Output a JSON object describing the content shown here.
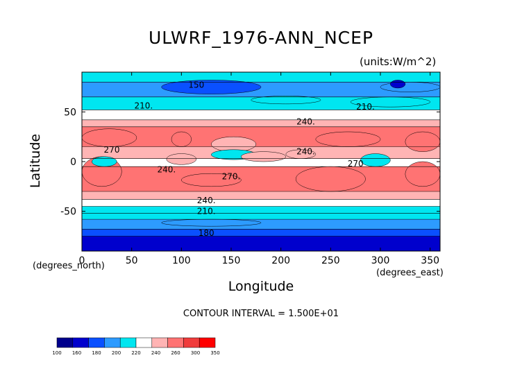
{
  "chart_data": {
    "type": "heatmap",
    "title": "ULWRF_1976-ANN_NCEP",
    "units": "(units:W/m^2)",
    "xlabel": "Longitude",
    "ylabel": "Latitude",
    "x_units_label": "(degrees_east)",
    "y_units_label": "(degrees_north)",
    "xlim": [
      0,
      360
    ],
    "ylim": [
      -90,
      90
    ],
    "x_ticks": [
      0,
      50,
      100,
      150,
      200,
      250,
      300,
      350
    ],
    "y_ticks": [
      -50,
      0,
      50
    ],
    "contour_interval_text": "CONTOUR INTERVAL = 1.500E+01",
    "colorbar": {
      "levels": [
        "100",
        "160",
        "180",
        "200",
        "220",
        "240",
        "260",
        "300",
        "350"
      ],
      "colors": [
        "#00008c",
        "#0000cd",
        "#0a50ff",
        "#2d9bff",
        "#00e6f0",
        "#ffffff",
        "#ffb4b4",
        "#ff7373",
        "#f03c3c",
        "#ff0000"
      ]
    },
    "contour_labels": [
      {
        "text": "150",
        "lon": 115,
        "lat": 77
      },
      {
        "text": "210.",
        "lon": 62,
        "lat": 56
      },
      {
        "text": "210.",
        "lon": 285,
        "lat": 55
      },
      {
        "text": "240.",
        "lon": 225,
        "lat": 40
      },
      {
        "text": "270",
        "lon": 30,
        "lat": 12
      },
      {
        "text": "240.",
        "lon": 225,
        "lat": 10
      },
      {
        "text": "240.",
        "lon": 85,
        "lat": -8
      },
      {
        "text": "270",
        "lon": 275,
        "lat": -2
      },
      {
        "text": "270.",
        "lon": 150,
        "lat": -15
      },
      {
        "text": "240.",
        "lon": 125,
        "lat": -39
      },
      {
        "text": "210.",
        "lon": 125,
        "lat": -50
      },
      {
        "text": "180",
        "lon": 125,
        "lat": -72
      }
    ],
    "bands": [
      {
        "lat_min": 80,
        "lat_max": 90,
        "value": 205
      },
      {
        "lat_min": 65,
        "lat_max": 80,
        "value": 185
      },
      {
        "lat_min": 52,
        "lat_max": 65,
        "value": 210
      },
      {
        "lat_min": 42,
        "lat_max": 52,
        "value": 230
      },
      {
        "lat_min": 35,
        "lat_max": 42,
        "value": 245
      },
      {
        "lat_min": 15,
        "lat_max": 35,
        "value": 265
      },
      {
        "lat_min": 3,
        "lat_max": 15,
        "value": 245
      },
      {
        "lat_min": -5,
        "lat_max": 3,
        "value": 235
      },
      {
        "lat_min": -30,
        "lat_max": -5,
        "value": 265
      },
      {
        "lat_min": -38,
        "lat_max": -30,
        "value": 250
      },
      {
        "lat_min": -45,
        "lat_max": -38,
        "value": 235
      },
      {
        "lat_min": -52,
        "lat_max": -45,
        "value": 215
      },
      {
        "lat_min": -58,
        "lat_max": -52,
        "value": 205
      },
      {
        "lat_min": -68,
        "lat_max": -58,
        "value": 190
      },
      {
        "lat_min": -75,
        "lat_max": -68,
        "value": 175
      },
      {
        "lat_min": -90,
        "lat_max": -75,
        "value": 150
      }
    ],
    "features": [
      {
        "lon_min": 0,
        "lon_max": 55,
        "lat_min": 15,
        "lat_max": 33,
        "value": 285
      },
      {
        "lon_min": 90,
        "lon_max": 110,
        "lat_min": 15,
        "lat_max": 30,
        "value": 260
      },
      {
        "lon_min": 130,
        "lon_max": 175,
        "lat_min": 10,
        "lat_max": 25,
        "value": 240
      },
      {
        "lon_min": 235,
        "lon_max": 300,
        "lat_min": 15,
        "lat_max": 30,
        "value": 285
      },
      {
        "lon_min": 325,
        "lon_max": 360,
        "lat_min": 10,
        "lat_max": 30,
        "value": 285
      },
      {
        "lon_min": 0,
        "lon_max": 40,
        "lat_min": -25,
        "lat_max": 5,
        "value": 280
      },
      {
        "lon_min": 10,
        "lon_max": 35,
        "lat_min": -5,
        "lat_max": 5,
        "value": 215
      },
      {
        "lon_min": 100,
        "lon_max": 160,
        "lat_min": -25,
        "lat_max": -12,
        "value": 275
      },
      {
        "lon_min": 215,
        "lon_max": 285,
        "lat_min": -30,
        "lat_max": -5,
        "value": 285
      },
      {
        "lon_min": 325,
        "lon_max": 360,
        "lat_min": -25,
        "lat_max": 0,
        "value": 280
      },
      {
        "lon_min": 130,
        "lon_max": 175,
        "lat_min": 2,
        "lat_max": 12,
        "value": 215
      },
      {
        "lon_min": 280,
        "lon_max": 310,
        "lat_min": -5,
        "lat_max": 8,
        "value": 215
      },
      {
        "lon_min": 160,
        "lon_max": 205,
        "lat_min": 0,
        "lat_max": 10,
        "value": 245
      },
      {
        "lon_min": 85,
        "lon_max": 115,
        "lat_min": -3,
        "lat_max": 8,
        "value": 240
      },
      {
        "lon_min": 205,
        "lon_max": 235,
        "lat_min": 3,
        "lat_max": 12,
        "value": 255
      },
      {
        "lon_min": 80,
        "lon_max": 180,
        "lat_min": 68,
        "lat_max": 82,
        "value": 170
      },
      {
        "lon_min": 300,
        "lon_max": 360,
        "lat_min": 70,
        "lat_max": 80,
        "value": 180
      },
      {
        "lon_min": 310,
        "lon_max": 325,
        "lat_min": 74,
        "lat_max": 82,
        "value": 155
      },
      {
        "lon_min": 270,
        "lon_max": 350,
        "lat_min": 55,
        "lat_max": 65,
        "value": 200
      },
      {
        "lon_min": 170,
        "lon_max": 240,
        "lat_min": 58,
        "lat_max": 66,
        "value": 200
      },
      {
        "lon_min": 80,
        "lon_max": 180,
        "lat_min": -65,
        "lat_max": -58,
        "value": 180
      }
    ]
  }
}
